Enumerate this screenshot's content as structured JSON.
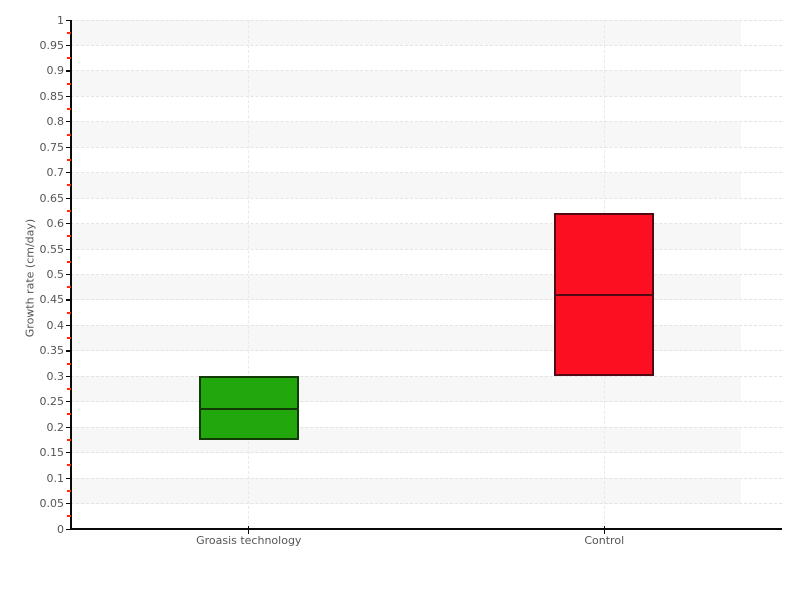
{
  "chart_data": {
    "type": "box",
    "title": "",
    "xlabel": "",
    "ylabel": "Growth rate (cm/day)",
    "ylim": [
      0,
      1
    ],
    "y_tick_step": 0.05,
    "y_minor_tick_step": 0.025,
    "grid": "horizontal dashed gridlines at each major tick, vertical dashed line at each category center, alternating shaded row bands",
    "legend": "none",
    "categories": [
      "Groasis technology",
      "Control"
    ],
    "series": [
      {
        "name": "Groasis technology",
        "low": 0.175,
        "median": 0.235,
        "high": 0.3,
        "fill": "#22a70d",
        "border": "#123a06"
      },
      {
        "name": "Control",
        "low": 0.3,
        "median": 0.46,
        "high": 0.62,
        "fill": "#fb0f20",
        "border": "#510a14"
      }
    ],
    "y_tick_labels": [
      "1",
      "0.95",
      "0.9",
      "0.85",
      "0.8",
      "0.75",
      "0.7",
      "0.65",
      "0.6",
      "0.55",
      "0.5",
      "0.45",
      "0.4",
      "0.35",
      "0.3",
      "0.25",
      "0.2",
      "0.15",
      "0.1",
      "0.05",
      "0"
    ]
  },
  "colors": {
    "background": "#ffffff",
    "band_shaded": "#f7f7f7",
    "gridline": "#e4e4e4",
    "axis": "#0a0a0a",
    "minor_tick": "#ff2b00",
    "label_text": "#555555"
  }
}
